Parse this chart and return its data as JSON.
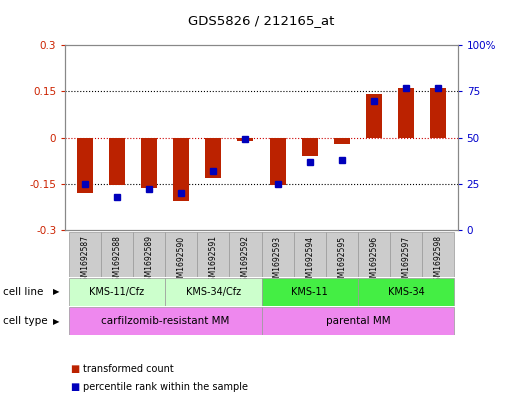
{
  "title": "GDS5826 / 212165_at",
  "samples": [
    "GSM1692587",
    "GSM1692588",
    "GSM1692589",
    "GSM1692590",
    "GSM1692591",
    "GSM1692592",
    "GSM1692593",
    "GSM1692594",
    "GSM1692595",
    "GSM1692596",
    "GSM1692597",
    "GSM1692598"
  ],
  "transformed_counts": [
    -0.18,
    -0.155,
    -0.165,
    -0.205,
    -0.13,
    -0.01,
    -0.155,
    -0.06,
    -0.02,
    0.14,
    0.16,
    0.16
  ],
  "percentile_ranks": [
    25,
    18,
    22,
    20,
    32,
    49,
    25,
    37,
    38,
    70,
    77,
    77
  ],
  "ylim_left": [
    -0.3,
    0.3
  ],
  "ylim_right": [
    0,
    100
  ],
  "yticks_left": [
    -0.3,
    -0.15,
    0,
    0.15,
    0.3
  ],
  "yticks_right": [
    0,
    25,
    50,
    75,
    100
  ],
  "bar_color": "#bb2200",
  "dot_color": "#0000bb",
  "cell_line_groups": [
    {
      "label": "KMS-11/Cfz",
      "start": 0,
      "end": 2,
      "color": "#ccffcc"
    },
    {
      "label": "KMS-34/Cfz",
      "start": 3,
      "end": 5,
      "color": "#ccffcc"
    },
    {
      "label": "KMS-11",
      "start": 6,
      "end": 8,
      "color": "#44ee44"
    },
    {
      "label": "KMS-34",
      "start": 9,
      "end": 11,
      "color": "#44ee44"
    }
  ],
  "cell_type_groups": [
    {
      "label": "carfilzomib-resistant MM",
      "start": 0,
      "end": 5,
      "color": "#ee88ee"
    },
    {
      "label": "parental MM",
      "start": 6,
      "end": 11,
      "color": "#ee88ee"
    }
  ],
  "cell_line_label": "cell line",
  "cell_type_label": "cell type",
  "legend_items": [
    {
      "color": "#bb2200",
      "label": "transformed count"
    },
    {
      "color": "#0000bb",
      "label": "percentile rank within the sample"
    }
  ],
  "dotted_line_color": "#000000",
  "zero_line_color": "#cc0000",
  "bg_color": "#ffffff",
  "plot_bg_color": "#ffffff",
  "tick_label_color_left": "#cc2200",
  "tick_label_color_right": "#0000cc",
  "sample_box_color": "#cccccc",
  "bar_width": 0.5
}
